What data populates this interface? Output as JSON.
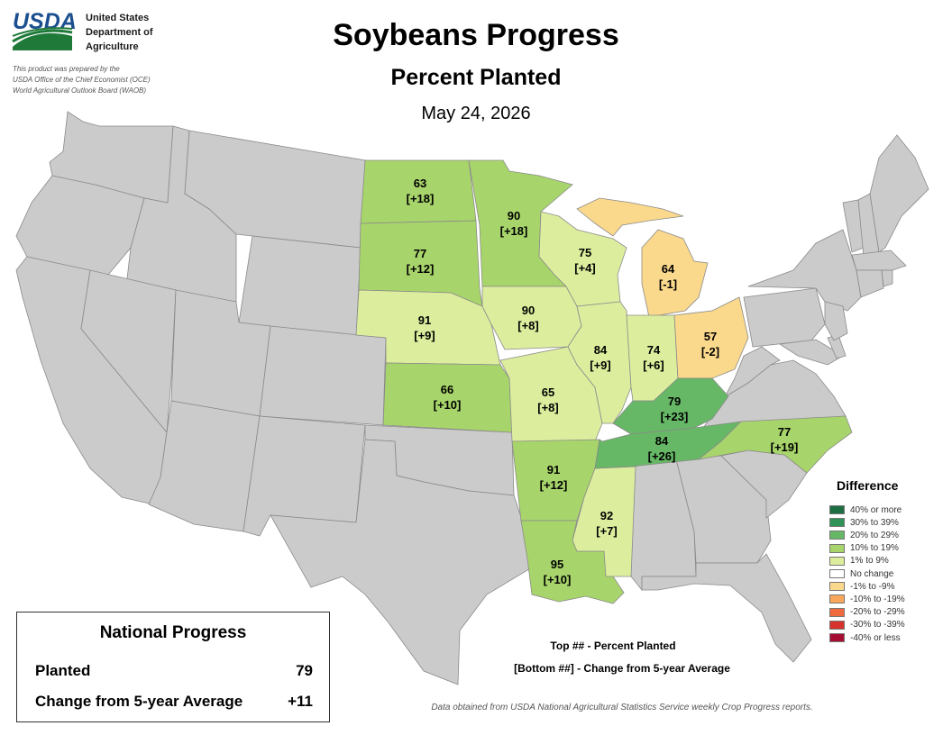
{
  "header": {
    "logo_text": "USDA",
    "agency_lines": [
      "United States",
      "Department of",
      "Agriculture"
    ],
    "prepared_lines": [
      "This product was prepared by the",
      "USDA Office of the Chief Economist (OCE)",
      "World Agricultural Outlook Board (WAOB)"
    ],
    "title": "Soybeans Progress",
    "subtitle": "Percent Planted",
    "date": "May 24, 2026"
  },
  "colors": {
    "nodata": "#cbcbcb",
    "border": "#8a8a8a",
    "c40": "#1e6e43",
    "c30": "#2f9358",
    "c20": "#66b866",
    "c10": "#a8d56b",
    "c1": "#dcee9e",
    "c0": "#ffffff",
    "n1": "#fbd98c",
    "n10": "#f9a75b",
    "n20": "#f06a3f",
    "n30": "#d5332c",
    "n40": "#a50e32"
  },
  "states": [
    {
      "id": "ND",
      "name": "North Dakota",
      "percent": "63",
      "change": "[+18]",
      "category": "c10"
    },
    {
      "id": "SD",
      "name": "South Dakota",
      "percent": "77",
      "change": "[+12]",
      "category": "c10"
    },
    {
      "id": "NE",
      "name": "Nebraska",
      "percent": "91",
      "change": "[+9]",
      "category": "c1"
    },
    {
      "id": "KS",
      "name": "Kansas",
      "percent": "66",
      "change": "[+10]",
      "category": "c10"
    },
    {
      "id": "MN",
      "name": "Minnesota",
      "percent": "90",
      "change": "[+18]",
      "category": "c10"
    },
    {
      "id": "IA",
      "name": "Iowa",
      "percent": "90",
      "change": "[+8]",
      "category": "c1"
    },
    {
      "id": "MO",
      "name": "Missouri",
      "percent": "65",
      "change": "[+8]",
      "category": "c1"
    },
    {
      "id": "AR",
      "name": "Arkansas",
      "percent": "91",
      "change": "[+12]",
      "category": "c10"
    },
    {
      "id": "LA",
      "name": "Louisiana",
      "percent": "95",
      "change": "[+10]",
      "category": "c10"
    },
    {
      "id": "MS",
      "name": "Mississippi",
      "percent": "92",
      "change": "[+7]",
      "category": "c1"
    },
    {
      "id": "WI",
      "name": "Wisconsin",
      "percent": "75",
      "change": "[+4]",
      "category": "c1"
    },
    {
      "id": "IL",
      "name": "Illinois",
      "percent": "84",
      "change": "[+9]",
      "category": "c1"
    },
    {
      "id": "MI",
      "name": "Michigan",
      "percent": "64",
      "change": "[-1]",
      "category": "n1"
    },
    {
      "id": "IN",
      "name": "Indiana",
      "percent": "74",
      "change": "[+6]",
      "category": "c1"
    },
    {
      "id": "OH",
      "name": "Ohio",
      "percent": "57",
      "change": "[-2]",
      "category": "n1"
    },
    {
      "id": "KY",
      "name": "Kentucky",
      "percent": "79",
      "change": "[+23]",
      "category": "c20"
    },
    {
      "id": "TN",
      "name": "Tennessee",
      "percent": "84",
      "change": "[+26]",
      "category": "c20"
    },
    {
      "id": "NC",
      "name": "North Carolina",
      "percent": "77",
      "change": "[+19]",
      "category": "c10"
    }
  ],
  "legend": {
    "title": "Difference",
    "items": [
      {
        "label": "40% or more",
        "category": "c40"
      },
      {
        "label": "30% to 39%",
        "category": "c30"
      },
      {
        "label": "20% to 29%",
        "category": "c20"
      },
      {
        "label": "10% to 19%",
        "category": "c10"
      },
      {
        "label": "1% to 9%",
        "category": "c1"
      },
      {
        "label": "No change",
        "category": "c0"
      },
      {
        "label": "-1% to -9%",
        "category": "n1"
      },
      {
        "label": "-10% to -19%",
        "category": "n10"
      },
      {
        "label": "-20% to -29%",
        "category": "n20"
      },
      {
        "label": "-30% to -39%",
        "category": "n30"
      },
      {
        "label": "-40% or less",
        "category": "n40"
      }
    ]
  },
  "notes": {
    "top": "Top ## - Percent Planted",
    "bottom": "[Bottom ##] - Change from 5-year Average"
  },
  "national": {
    "title": "National Progress",
    "planted_label": "Planted",
    "planted_value": "79",
    "change_label": "Change from 5-year Average",
    "change_value": "+11"
  },
  "source": "Data obtained from USDA National Agricultural Statistics Service weekly Crop Progress reports."
}
